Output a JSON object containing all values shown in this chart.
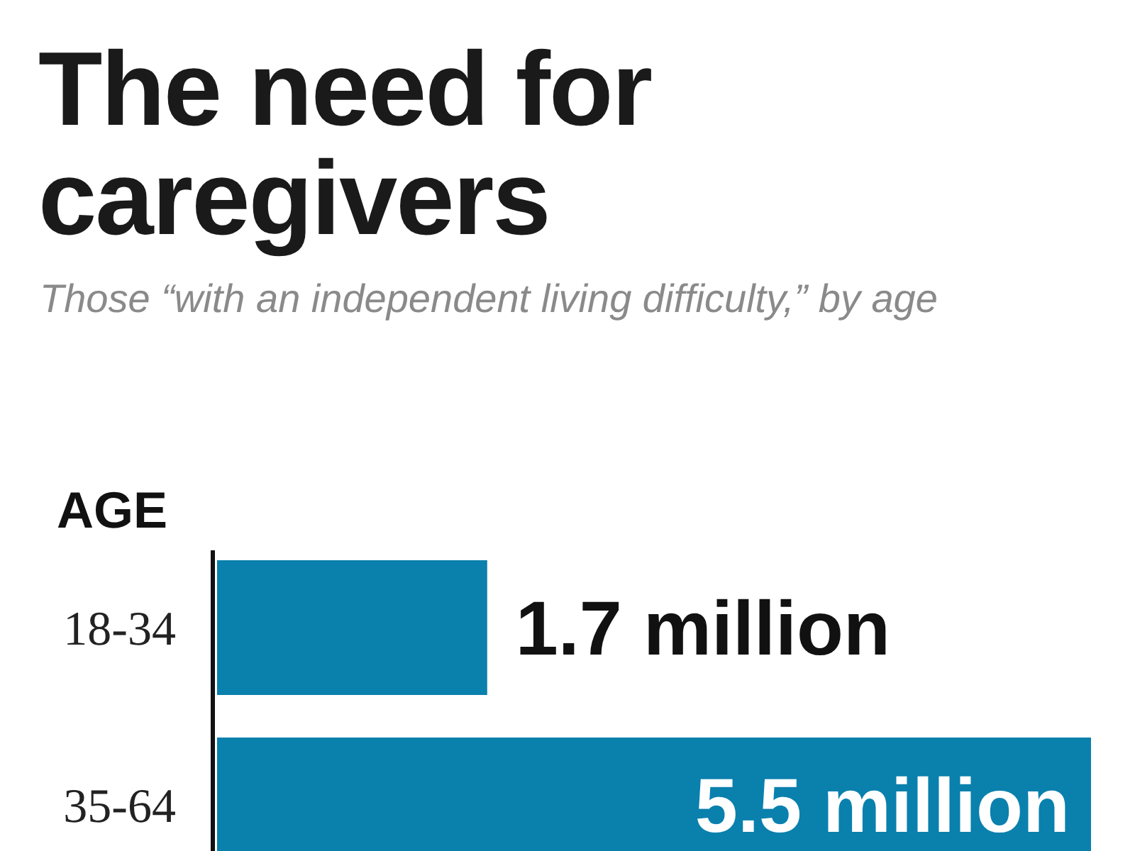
{
  "chart_data": {
    "type": "bar",
    "orientation": "horizontal",
    "title": "The need for caregivers",
    "subtitle": "Those “with an independent living difficulty,” by age",
    "ylabel": "AGE",
    "categories": [
      "18-34",
      "35-64"
    ],
    "values": [
      1.7,
      5.5
    ],
    "value_labels": [
      "1.7 million",
      "5.5 million"
    ],
    "color": "#0a80ad"
  }
}
